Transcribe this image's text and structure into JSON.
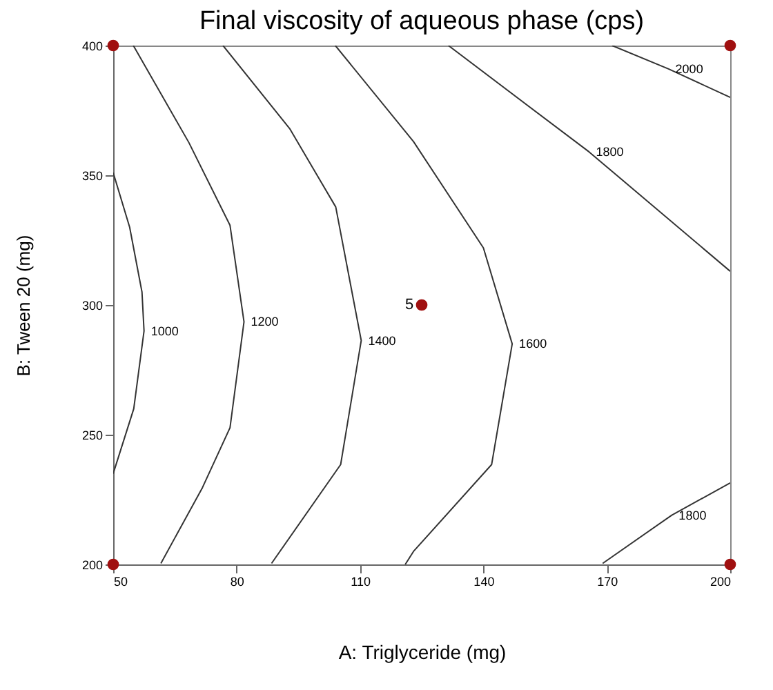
{
  "chart_data": {
    "type": "line",
    "title": "Final viscosity of aqueous phase (cps)",
    "xlabel": "A: Triglyceride (mg)",
    "ylabel": "B: Tween 20 (mg)",
    "xlim": [
      50,
      200
    ],
    "ylim": [
      200,
      400
    ],
    "xticks": [
      50,
      80,
      110,
      140,
      170,
      200
    ],
    "yticks": [
      200,
      250,
      300,
      350,
      400
    ],
    "grid": false,
    "legend": false,
    "line_style": "solid",
    "series": [
      {
        "name": "1000",
        "color": "#333333",
        "x": [
          50,
          54,
          57,
          57.5,
          55,
          50
        ],
        "values": [
          351,
          330,
          305,
          290,
          260,
          235
        ]
      },
      {
        "name": "1200",
        "color": "#333333",
        "x": [
          54.9,
          68.4,
          78.4,
          81.8,
          78.4,
          71.7,
          61.6
        ],
        "values": [
          400,
          362.6,
          330.7,
          293.5,
          252.7,
          229.6,
          200.4
        ]
      },
      {
        "name": "1400",
        "color": "#333333",
        "x": [
          76.7,
          92.9,
          104.1,
          110.3,
          105.3,
          88.5
        ],
        "values": [
          400,
          368,
          337.8,
          286.3,
          238.5,
          200.4
        ]
      },
      {
        "name": "1600",
        "color": "#333333",
        "x": [
          104,
          123,
          140,
          147,
          142,
          123,
          121
        ],
        "values": [
          400,
          363,
          322,
          285,
          238.5,
          205,
          200
        ]
      },
      {
        "name": "1800",
        "color": "#333333",
        "x": [
          131.5,
          165.7,
          200
        ],
        "values": [
          400,
          359,
          313
        ]
      },
      {
        "name": "2000",
        "color": "#333333",
        "x": [
          171.3,
          185,
          200
        ],
        "values": [
          400,
          391,
          380
        ]
      },
      {
        "name": "1800",
        "color": "#333333",
        "x": [
          169,
          185.8,
          200
        ],
        "values": [
          200.4,
          219,
          231.4
        ]
      },
      {
        "type": "scatter",
        "marker": "circle",
        "color": "#a01010",
        "x": [
          50,
          50,
          200,
          200,
          125
        ],
        "values": [
          400,
          200,
          400,
          200,
          300
        ]
      }
    ],
    "annotations": [
      {
        "text": "5",
        "x": 125,
        "y": 300
      }
    ]
  }
}
